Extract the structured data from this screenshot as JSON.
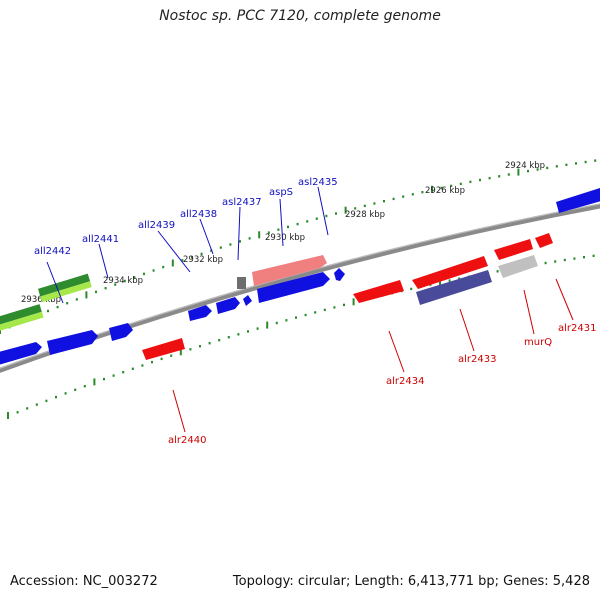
{
  "title": "Nostoc sp. PCC 7120, complete genome",
  "accession": "Accession: NC_003272",
  "summary": "Topology: circular; Length: 6,413,771 bp; Genes: 5,428",
  "colors": {
    "backbone": "#8a8a8a",
    "forward_cds": "#0a0aee",
    "reverse_cds": "#ee0a0a",
    "label_forward": "#1010c0",
    "label_reverse": "#cc0000",
    "tick": "#2a8a2a"
  },
  "scale_labels": [
    {
      "text": "2924 kbp"
    },
    {
      "text": "2926 kbp"
    },
    {
      "text": "2928 kbp"
    },
    {
      "text": "2930 kbp"
    },
    {
      "text": "2932 kbp"
    },
    {
      "text": "2934 kbp"
    },
    {
      "text": "2936 kbp"
    }
  ],
  "genes_top": [
    {
      "text": "all2442"
    },
    {
      "text": "all2441"
    },
    {
      "text": "all2439"
    },
    {
      "text": "all2438"
    },
    {
      "text": "asl2437"
    },
    {
      "text": "aspS"
    },
    {
      "text": "asl2435"
    }
  ],
  "genes_bottom": [
    {
      "text": "alr2440"
    },
    {
      "text": "alr2434"
    },
    {
      "text": "alr2433"
    },
    {
      "text": "murQ"
    },
    {
      "text": "alr2431"
    }
  ]
}
